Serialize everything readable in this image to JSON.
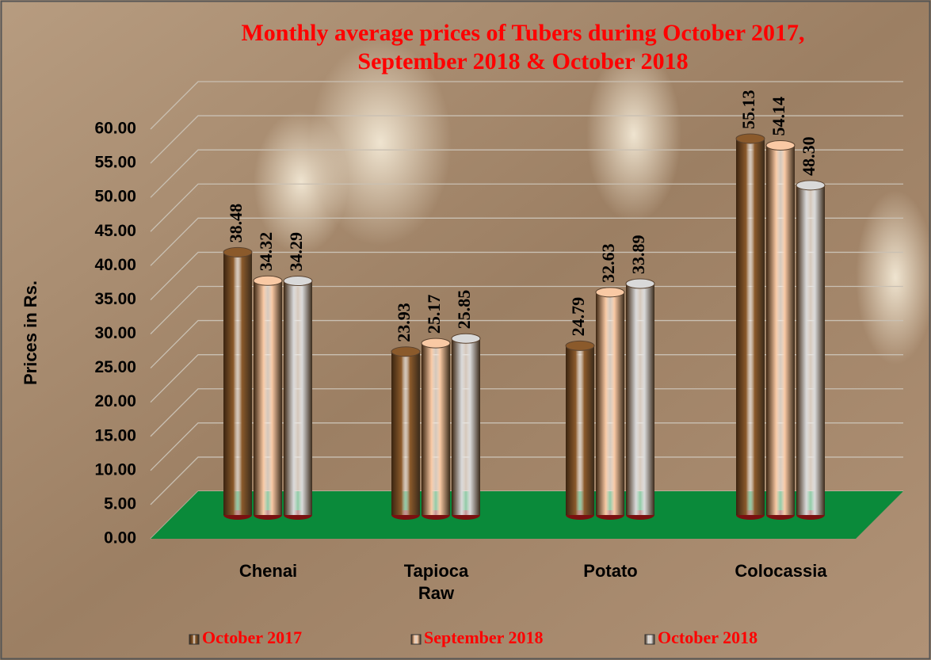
{
  "chart_data": {
    "type": "bar",
    "title": [
      "Monthly average prices of Tubers during  October  2017,",
      "September  2018 & October 2018"
    ],
    "y_label": "Prices in Rs.",
    "categories": [
      "Chenai",
      "Tapioca Raw",
      "Potato",
      "Colocassia"
    ],
    "series": [
      {
        "name": "October 2017",
        "color": "#8b5a2b",
        "values": [
          38.48,
          23.93,
          24.79,
          55.13
        ],
        "value_labels": [
          "38.48",
          "23.93",
          "24.79",
          "55.13"
        ]
      },
      {
        "name": "September  2018",
        "color": "#f9c9a4",
        "values": [
          34.32,
          25.17,
          32.63,
          54.14
        ],
        "value_labels": [
          "34.32",
          "25.17",
          "32.63",
          "54.14"
        ]
      },
      {
        "name": "October 2018",
        "color": "#d9d9d9",
        "values": [
          34.29,
          25.85,
          33.89,
          48.3
        ],
        "value_labels": [
          "34.29",
          "25.85",
          "33.89",
          "48.30"
        ]
      }
    ],
    "ylim": [
      0,
      60
    ],
    "yticks": [
      {
        "value": 0,
        "label": "0.00"
      },
      {
        "value": 5,
        "label": "5.00"
      },
      {
        "value": 10,
        "label": "10.00"
      },
      {
        "value": 15,
        "label": "15.00"
      },
      {
        "value": 20,
        "label": "20.00"
      },
      {
        "value": 25,
        "label": "25.00"
      },
      {
        "value": 30,
        "label": "30.00"
      },
      {
        "value": 35,
        "label": "35.00"
      },
      {
        "value": 40,
        "label": "40.00"
      },
      {
        "value": 45,
        "label": "45.00"
      },
      {
        "value": 50,
        "label": "50.00"
      },
      {
        "value": 55,
        "label": "55.00"
      },
      {
        "value": 60,
        "label": "60.00"
      }
    ],
    "grid": true,
    "legend": "bottom"
  }
}
